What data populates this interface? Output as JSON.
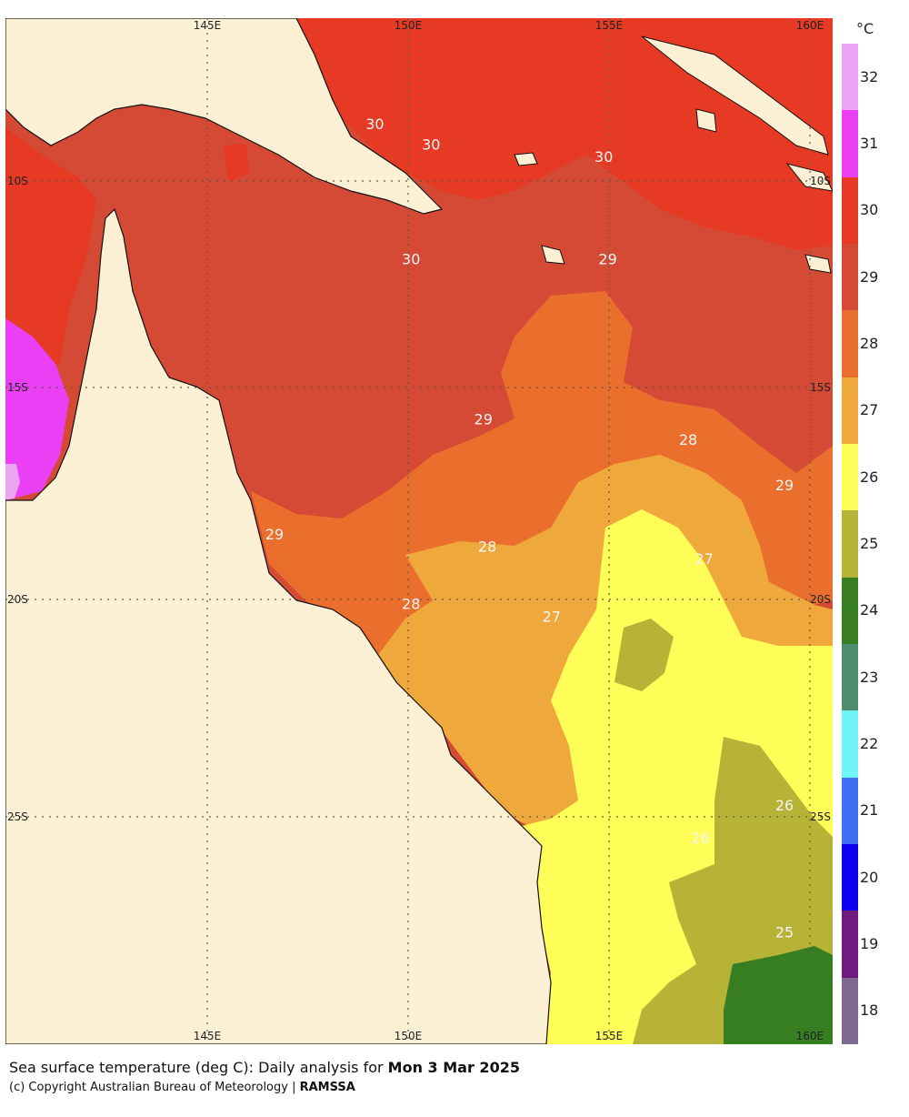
{
  "map": {
    "colors": {
      "land": "#fbf0d4",
      "coast": "#111111",
      "c18": "#7d6a8e",
      "c19": "#70197f",
      "c20": "#0a00ee",
      "c21": "#3f6ff2",
      "c22": "#6ff5f6",
      "c23": "#4e8c6e",
      "c24": "#377e22",
      "c25": "#b7b337",
      "c26": "#fffd57",
      "c27": "#efa83b",
      "c28": "#ea6e2c",
      "c29": "#d54a35",
      "c30": "#e73a24",
      "c31": "#ea3ff5",
      "c32": "#eca4f5"
    },
    "lon_ticks_top": [
      "145E",
      "150E",
      "155E",
      "160E"
    ],
    "lon_ticks_bottom": [
      "145E",
      "150E",
      "155E",
      "160E"
    ],
    "lat_ticks_left": [
      "10S",
      "15S",
      "20S",
      "25S"
    ],
    "lat_ticks_right": [
      "10S",
      "15S",
      "20S",
      "25S"
    ],
    "contour_labels": [
      {
        "text": "30",
        "lon": 149.2,
        "lat": -8.7
      },
      {
        "text": "30",
        "lon": 150.6,
        "lat": -9.2
      },
      {
        "text": "30",
        "lon": 154.9,
        "lat": -9.5
      },
      {
        "text": "30",
        "lon": 150.1,
        "lat": -12.0
      },
      {
        "text": "29",
        "lon": 155.0,
        "lat": -12.0
      },
      {
        "text": "29",
        "lon": 151.9,
        "lat": -15.9
      },
      {
        "text": "28",
        "lon": 157.0,
        "lat": -16.4
      },
      {
        "text": "29",
        "lon": 159.4,
        "lat": -17.5
      },
      {
        "text": "29",
        "lon": 146.7,
        "lat": -18.7
      },
      {
        "text": "28",
        "lon": 152.0,
        "lat": -19.0
      },
      {
        "text": "27",
        "lon": 157.4,
        "lat": -19.3
      },
      {
        "text": "28",
        "lon": 150.1,
        "lat": -20.4
      },
      {
        "text": "27",
        "lon": 153.6,
        "lat": -20.7
      },
      {
        "text": "26",
        "lon": 159.4,
        "lat": -25.3
      },
      {
        "text": "26",
        "lon": 157.3,
        "lat": -26.1
      },
      {
        "text": "25",
        "lon": 159.4,
        "lat": -28.4
      }
    ]
  },
  "legend": {
    "unit": "°C",
    "levels": [
      {
        "label": "32",
        "color": "#eca4f5"
      },
      {
        "label": "31",
        "color": "#ea3ff5"
      },
      {
        "label": "30",
        "color": "#e73a24"
      },
      {
        "label": "29",
        "color": "#d54a35"
      },
      {
        "label": "28",
        "color": "#ea6e2c"
      },
      {
        "label": "27",
        "color": "#efa83b"
      },
      {
        "label": "26",
        "color": "#fffd57"
      },
      {
        "label": "25",
        "color": "#b7b337"
      },
      {
        "label": "24",
        "color": "#377e22"
      },
      {
        "label": "23",
        "color": "#4e8c6e"
      },
      {
        "label": "22",
        "color": "#6ff5f6"
      },
      {
        "label": "21",
        "color": "#3f6ff2"
      },
      {
        "label": "20",
        "color": "#0a00ee"
      },
      {
        "label": "19",
        "color": "#70197f"
      },
      {
        "label": "18",
        "color": "#7d6a8e"
      }
    ]
  },
  "caption": {
    "prefix": "Sea surface temperature (deg C): Daily analysis for ",
    "date": "Mon 3 Mar 2025"
  },
  "copyright": {
    "prefix": "(c) Copyright Australian Bureau of Meteorology | ",
    "brand": "RAMSSA"
  }
}
